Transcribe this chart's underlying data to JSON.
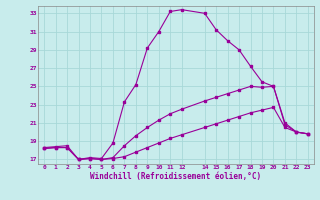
{
  "xlabel": "Windchill (Refroidissement éolien,°C)",
  "bg_color": "#c8ecec",
  "line_color": "#990099",
  "grid_color": "#a8d8d8",
  "xlim": [
    -0.5,
    23.5
  ],
  "ylim": [
    16.5,
    33.8
  ],
  "yticks": [
    17,
    19,
    21,
    23,
    25,
    27,
    29,
    31,
    33
  ],
  "xtick_positions": [
    0,
    1,
    2,
    3,
    4,
    5,
    6,
    7,
    8,
    9,
    10,
    11,
    12,
    14,
    15,
    16,
    17,
    18,
    19,
    20,
    21,
    22,
    23
  ],
  "xtick_labels": [
    "0",
    "1",
    "2",
    "3",
    "4",
    "5",
    "6",
    "7",
    "8",
    "9",
    "10",
    "11",
    "12",
    "14",
    "15",
    "16",
    "17",
    "18",
    "19",
    "20",
    "21",
    "22",
    "23"
  ],
  "curve_upper_x": [
    0,
    1,
    2,
    3,
    4,
    5,
    6,
    7,
    8,
    9,
    10,
    11,
    12,
    14,
    15,
    16,
    17,
    18,
    19,
    20,
    21,
    22,
    23
  ],
  "curve_upper_y": [
    18.3,
    18.4,
    18.5,
    17.0,
    17.2,
    17.1,
    18.8,
    23.3,
    25.2,
    29.2,
    31.0,
    33.2,
    33.4,
    33.0,
    31.2,
    30.0,
    29.0,
    27.2,
    25.5,
    25.0,
    21.0,
    20.0,
    19.8
  ],
  "curve_mid_x": [
    0,
    1,
    2,
    3,
    4,
    5,
    6,
    7,
    8,
    9,
    10,
    11,
    12,
    14,
    15,
    16,
    17,
    18,
    19,
    20,
    21,
    22,
    23
  ],
  "curve_mid_y": [
    18.2,
    18.3,
    18.3,
    17.0,
    17.1,
    17.0,
    17.2,
    18.5,
    19.6,
    20.5,
    21.3,
    22.0,
    22.5,
    23.4,
    23.8,
    24.2,
    24.6,
    25.0,
    24.9,
    25.0,
    20.8,
    20.0,
    19.8
  ],
  "curve_low_x": [
    0,
    1,
    2,
    3,
    4,
    5,
    6,
    7,
    8,
    9,
    10,
    11,
    12,
    14,
    15,
    16,
    17,
    18,
    19,
    20,
    21,
    22,
    23
  ],
  "curve_low_y": [
    18.2,
    18.3,
    18.3,
    17.0,
    17.1,
    17.0,
    17.1,
    17.3,
    17.8,
    18.3,
    18.8,
    19.3,
    19.7,
    20.5,
    20.9,
    21.3,
    21.7,
    22.1,
    22.4,
    22.7,
    20.5,
    20.0,
    19.8
  ]
}
